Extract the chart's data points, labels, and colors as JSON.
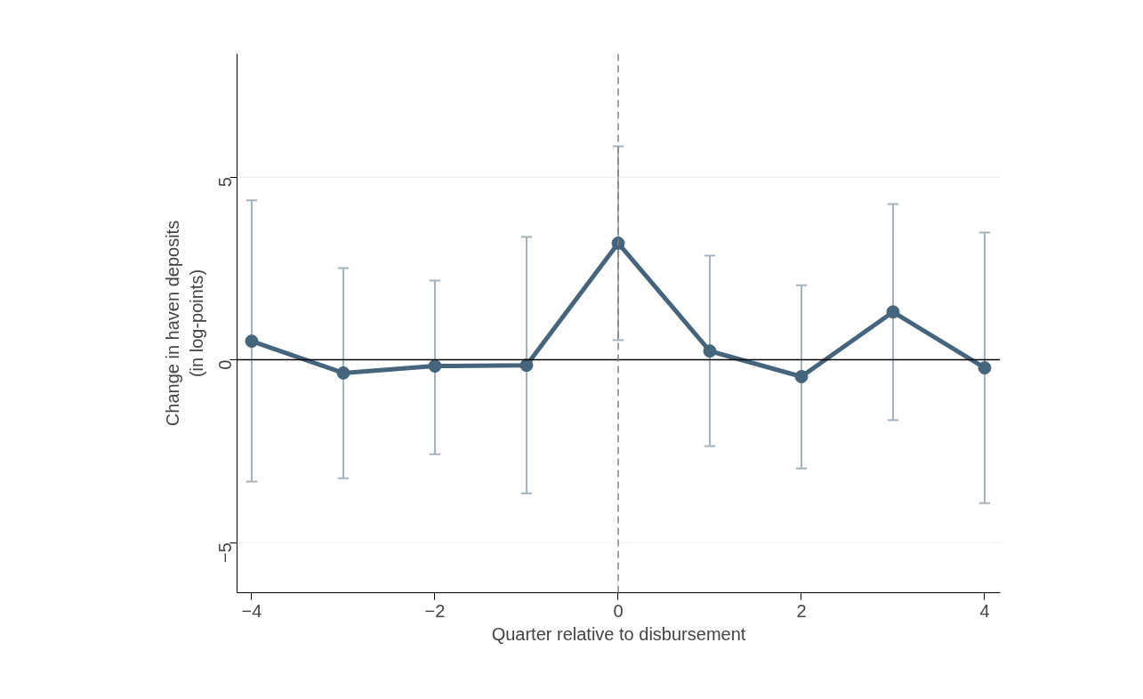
{
  "chart_data": {
    "type": "line",
    "xlabel": "Quarter relative to disbursement",
    "ylabel": "Change in haven deposits\n(in log-points)",
    "x": [
      -4,
      -3,
      -2,
      -1,
      0,
      1,
      2,
      3,
      4
    ],
    "series": [
      {
        "color": "#44657c",
        "values": [
          0.51,
          -0.36,
          -0.17,
          -0.15,
          3.19,
          0.24,
          -0.46,
          1.31,
          -0.22
        ],
        "errors": [
          [
            -3.33,
            4.36
          ],
          [
            -3.24,
            2.51
          ],
          [
            -2.58,
            2.17
          ],
          [
            -3.65,
            3.36
          ],
          [
            0.54,
            5.84
          ],
          [
            -2.36,
            2.85
          ],
          [
            -2.97,
            2.04
          ],
          [
            -1.65,
            4.26
          ],
          [
            -3.92,
            3.48
          ]
        ]
      }
    ],
    "marker": "circle",
    "xlim": [
      -4.16,
      4.17
    ],
    "ylim": [
      -6.37,
      8.37
    ],
    "xticks": [
      -4,
      -2,
      0,
      2,
      4
    ],
    "yticks": [
      -5,
      0,
      5
    ],
    "grid": "y",
    "ref_lines": [
      {
        "axis": "y",
        "value": 0,
        "color": "#000000",
        "line_style": "solid"
      },
      {
        "axis": "x",
        "value": 0,
        "color": "#808080",
        "line_style": "dashed"
      }
    ]
  }
}
